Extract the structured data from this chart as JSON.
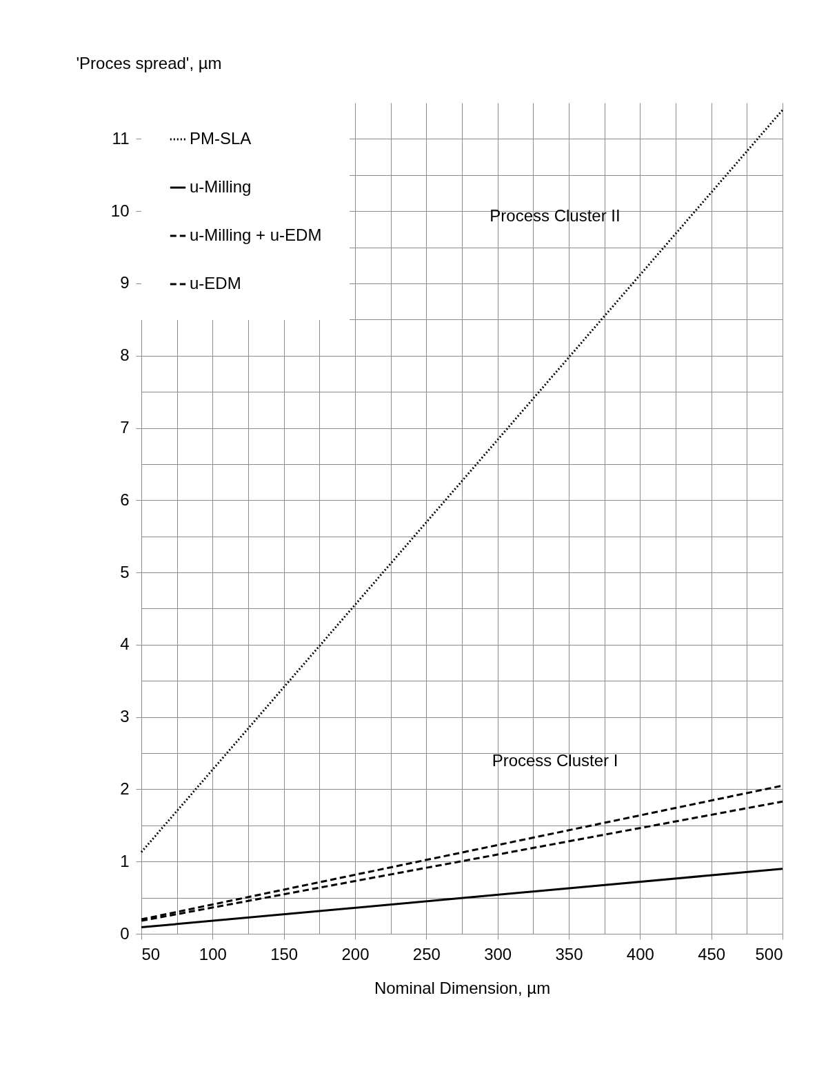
{
  "chart_data": {
    "type": "line",
    "xlabel": "Nominal Dimension, µm",
    "ylabel": "'Proces spread', µm",
    "x": [
      50,
      500
    ],
    "series": [
      {
        "name": "PM-SLA",
        "color": "#000000",
        "line_style": "dotted",
        "values": [
          1.13,
          11.4
        ]
      },
      {
        "name": "u-Milling",
        "color": "#000000",
        "line_style": "solid",
        "values": [
          0.09,
          0.9
        ]
      },
      {
        "name": "u-Milling + u-EDM",
        "color": "#000000",
        "line_style": "dashed",
        "values": [
          0.2,
          2.05
        ]
      },
      {
        "name": "u-EDM",
        "color": "#000000",
        "line_style": "dashed",
        "values": [
          0.18,
          1.83
        ]
      }
    ],
    "xlim": [
      50,
      500
    ],
    "xticks": [
      50,
      {
        "value": 75,
        "label": null
      },
      100,
      {
        "value": 125,
        "label": null
      },
      150,
      {
        "value": 175,
        "label": null
      },
      200,
      {
        "value": 225,
        "label": null
      },
      250,
      {
        "value": 275,
        "label": null
      },
      300,
      {
        "value": 325,
        "label": null
      },
      350,
      {
        "value": 375,
        "label": null
      },
      400,
      {
        "value": 425,
        "label": null
      },
      450,
      {
        "value": 475,
        "label": null
      },
      500
    ],
    "ylim": [
      0,
      11.5
    ],
    "yticks": [
      0,
      {
        "value": 0.5,
        "label": null
      },
      1,
      {
        "value": 1.5,
        "label": null
      },
      2,
      {
        "value": 2.5,
        "label": null
      },
      3,
      {
        "value": 3.5,
        "label": null
      },
      4,
      {
        "value": 4.5,
        "label": null
      },
      5,
      {
        "value": 5.5,
        "label": null
      },
      6,
      {
        "value": 6.5,
        "label": null
      },
      7,
      {
        "value": 7.5,
        "label": null
      },
      8,
      {
        "value": 8.5,
        "label": null
      },
      9,
      {
        "value": 9.5,
        "label": null
      },
      10,
      {
        "value": 10.5,
        "label": null
      },
      11
    ],
    "grid": true,
    "legend": "top left",
    "marker": "none",
    "annotations": [
      "Process Cluster II",
      "Process Cluster I"
    ]
  }
}
